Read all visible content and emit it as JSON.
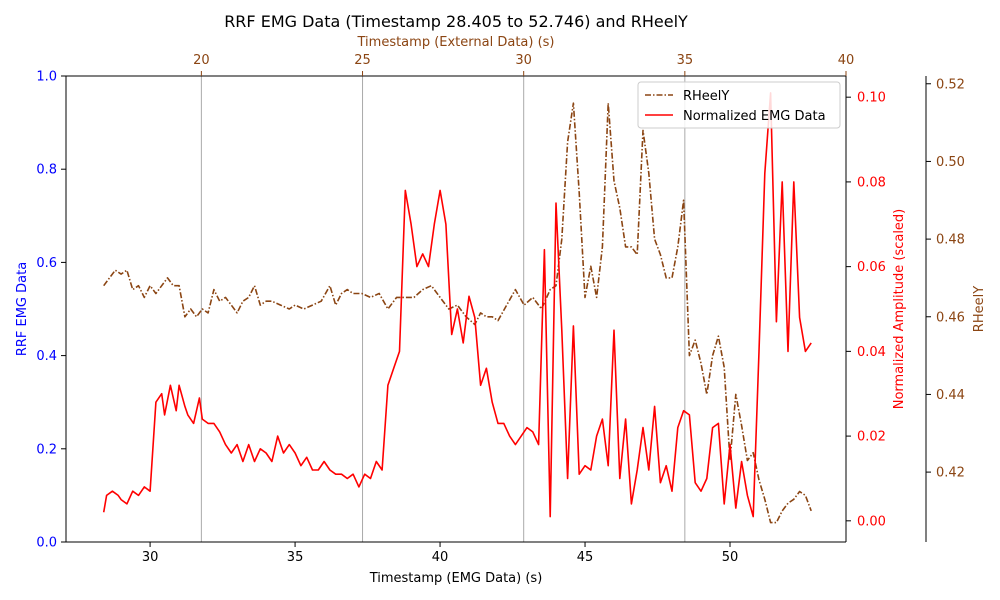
{
  "chart_data": {
    "type": "line",
    "title": "RRF EMG Data (Timestamp 28.405 to 52.746) and RHeelY",
    "xlabel": "Timestamp (EMG Data) (s)",
    "xlabel_top": "Timestamp (External Data) (s)",
    "ylabel_left": "RRF EMG Data",
    "ylabel_right": "Normalized Amplitude (scaled)",
    "ylabel_far_right": "RHeelY",
    "x_range": [
      27.1,
      54.0
    ],
    "x_ticks": [
      {
        "value": 30,
        "label": "30"
      },
      {
        "value": 35,
        "label": "35"
      },
      {
        "value": 40,
        "label": "40"
      },
      {
        "value": 45,
        "label": "45"
      },
      {
        "value": 50,
        "label": "50"
      }
    ],
    "x_top_range": [
      15.8,
      40.0
    ],
    "x_top_ticks": [
      {
        "value": 20,
        "label": "20"
      },
      {
        "value": 25,
        "label": "25"
      },
      {
        "value": 30,
        "label": "30"
      },
      {
        "value": 35,
        "label": "35"
      },
      {
        "value": 40,
        "label": "40"
      }
    ],
    "y_left_range": [
      0,
      1
    ],
    "y_left_ticks": [
      {
        "value": 0.0,
        "label": "0.0"
      },
      {
        "value": 0.2,
        "label": "0.2"
      },
      {
        "value": 0.4,
        "label": "0.4"
      },
      {
        "value": 0.6,
        "label": "0.6"
      },
      {
        "value": 0.8,
        "label": "0.8"
      },
      {
        "value": 1.0,
        "label": "1.0"
      }
    ],
    "y_right_range": [
      -0.005,
      0.105
    ],
    "y_right_ticks": [
      {
        "value": 0.0,
        "label": "0.00"
      },
      {
        "value": 0.02,
        "label": "0.02"
      },
      {
        "value": 0.04,
        "label": "0.04"
      },
      {
        "value": 0.06,
        "label": "0.06"
      },
      {
        "value": 0.08,
        "label": "0.08"
      },
      {
        "value": 0.1,
        "label": "0.10"
      }
    ],
    "y_far_right_range": [
      0.402,
      0.522
    ],
    "y_far_right_ticks": [
      {
        "value": 0.42,
        "label": "0.42"
      },
      {
        "value": 0.44,
        "label": "0.44"
      },
      {
        "value": 0.46,
        "label": "0.46"
      },
      {
        "value": 0.48,
        "label": "0.48"
      },
      {
        "value": 0.5,
        "label": "0.50"
      },
      {
        "value": 0.52,
        "label": "0.52"
      }
    ],
    "vlines_top_axis": [
      20,
      25,
      30,
      35
    ],
    "legend_position": "top-right",
    "colors": {
      "emg": "#ff0000",
      "heel": "#8b4513",
      "left_axis": "#0000ff",
      "right_axis": "#ff0000",
      "far_right_axis": "#8b4513",
      "vline": "#aaaaaa"
    },
    "series": [
      {
        "name": "RHeelY",
        "axis": "far_right",
        "style": "dashdot",
        "x": [
          28.4,
          28.6,
          28.8,
          29.0,
          29.2,
          29.4,
          29.6,
          29.8,
          30.0,
          30.2,
          30.4,
          30.6,
          30.8,
          31.0,
          31.2,
          31.4,
          31.6,
          31.8,
          32.0,
          32.2,
          32.4,
          32.6,
          32.8,
          33.0,
          33.2,
          33.4,
          33.6,
          33.8,
          34.0,
          34.2,
          34.5,
          34.8,
          35.0,
          35.3,
          35.6,
          35.9,
          36.2,
          36.4,
          36.6,
          36.8,
          37.0,
          37.3,
          37.6,
          37.9,
          38.2,
          38.5,
          38.8,
          39.1,
          39.4,
          39.7,
          40.0,
          40.3,
          40.6,
          40.9,
          41.2,
          41.4,
          41.6,
          41.8,
          42.0,
          42.3,
          42.6,
          42.9,
          43.2,
          43.5,
          43.8,
          44.0,
          44.2,
          44.4,
          44.6,
          44.8,
          45.0,
          45.2,
          45.4,
          45.6,
          45.8,
          46.0,
          46.2,
          46.4,
          46.6,
          46.8,
          47.0,
          47.2,
          47.4,
          47.6,
          47.8,
          48.0,
          48.2,
          48.4,
          48.6,
          48.8,
          49.0,
          49.2,
          49.4,
          49.6,
          49.8,
          50.0,
          50.2,
          50.4,
          50.6,
          50.8,
          51.0,
          51.2,
          51.4,
          51.6,
          51.8,
          52.0,
          52.2,
          52.4,
          52.6,
          52.8
        ],
        "values": [
          0.468,
          0.47,
          0.472,
          0.471,
          0.472,
          0.467,
          0.468,
          0.465,
          0.468,
          0.466,
          0.468,
          0.47,
          0.468,
          0.468,
          0.46,
          0.462,
          0.46,
          0.462,
          0.461,
          0.467,
          0.464,
          0.465,
          0.463,
          0.461,
          0.464,
          0.465,
          0.468,
          0.463,
          0.464,
          0.464,
          0.463,
          0.462,
          0.463,
          0.462,
          0.463,
          0.464,
          0.468,
          0.463,
          0.466,
          0.467,
          0.466,
          0.466,
          0.465,
          0.466,
          0.462,
          0.465,
          0.465,
          0.465,
          0.467,
          0.468,
          0.465,
          0.462,
          0.463,
          0.46,
          0.458,
          0.461,
          0.46,
          0.46,
          0.459,
          0.463,
          0.467,
          0.463,
          0.465,
          0.462,
          0.467,
          0.468,
          0.48,
          0.505,
          0.515,
          0.492,
          0.465,
          0.473,
          0.465,
          0.478,
          0.515,
          0.495,
          0.488,
          0.478,
          0.478,
          0.476,
          0.508,
          0.497,
          0.48,
          0.476,
          0.47,
          0.47,
          0.478,
          0.49,
          0.45,
          0.454,
          0.448,
          0.44,
          0.45,
          0.455,
          0.447,
          0.423,
          0.44,
          0.432,
          0.423,
          0.425,
          0.418,
          0.413,
          0.407,
          0.407,
          0.41,
          0.412,
          0.413,
          0.415,
          0.414,
          0.41
        ]
      },
      {
        "name": "Normalized EMG Data",
        "axis": "right",
        "style": "solid",
        "x": [
          28.4,
          28.5,
          28.7,
          28.9,
          29.0,
          29.2,
          29.4,
          29.6,
          29.8,
          30.0,
          30.2,
          30.4,
          30.5,
          30.7,
          30.9,
          31.0,
          31.2,
          31.3,
          31.5,
          31.7,
          31.8,
          32.0,
          32.2,
          32.4,
          32.6,
          32.8,
          33.0,
          33.2,
          33.4,
          33.6,
          33.8,
          34.0,
          34.2,
          34.4,
          34.6,
          34.8,
          35.0,
          35.2,
          35.4,
          35.6,
          35.8,
          36.0,
          36.2,
          36.4,
          36.6,
          36.8,
          37.0,
          37.2,
          37.4,
          37.6,
          37.8,
          38.0,
          38.2,
          38.4,
          38.6,
          38.8,
          39.0,
          39.2,
          39.4,
          39.6,
          39.8,
          40.0,
          40.2,
          40.4,
          40.6,
          40.8,
          41.0,
          41.2,
          41.4,
          41.6,
          41.8,
          42.0,
          42.2,
          42.4,
          42.6,
          42.8,
          43.0,
          43.2,
          43.4,
          43.6,
          43.8,
          44.0,
          44.2,
          44.4,
          44.6,
          44.8,
          45.0,
          45.2,
          45.4,
          45.6,
          45.8,
          46.0,
          46.2,
          46.4,
          46.6,
          46.8,
          47.0,
          47.2,
          47.4,
          47.6,
          47.8,
          48.0,
          48.2,
          48.4,
          48.6,
          48.8,
          49.0,
          49.2,
          49.4,
          49.6,
          49.8,
          50.0,
          50.2,
          50.4,
          50.6,
          50.8,
          51.0,
          51.2,
          51.4,
          51.6,
          51.8,
          52.0,
          52.2,
          52.4,
          52.6,
          52.8
        ],
        "values": [
          0.002,
          0.006,
          0.007,
          0.006,
          0.005,
          0.004,
          0.007,
          0.006,
          0.008,
          0.007,
          0.028,
          0.03,
          0.025,
          0.032,
          0.026,
          0.032,
          0.027,
          0.025,
          0.023,
          0.029,
          0.024,
          0.023,
          0.023,
          0.021,
          0.018,
          0.016,
          0.018,
          0.014,
          0.018,
          0.014,
          0.017,
          0.016,
          0.014,
          0.02,
          0.016,
          0.018,
          0.016,
          0.013,
          0.015,
          0.012,
          0.012,
          0.014,
          0.012,
          0.011,
          0.011,
          0.01,
          0.011,
          0.008,
          0.011,
          0.01,
          0.014,
          0.012,
          0.032,
          0.036,
          0.04,
          0.078,
          0.07,
          0.06,
          0.063,
          0.06,
          0.07,
          0.078,
          0.07,
          0.044,
          0.05,
          0.042,
          0.053,
          0.048,
          0.032,
          0.036,
          0.028,
          0.023,
          0.023,
          0.02,
          0.018,
          0.02,
          0.022,
          0.021,
          0.018,
          0.064,
          0.001,
          0.075,
          0.045,
          0.01,
          0.046,
          0.011,
          0.013,
          0.012,
          0.02,
          0.024,
          0.013,
          0.045,
          0.01,
          0.024,
          0.004,
          0.012,
          0.022,
          0.012,
          0.027,
          0.009,
          0.013,
          0.007,
          0.022,
          0.026,
          0.025,
          0.009,
          0.007,
          0.01,
          0.022,
          0.023,
          0.004,
          0.018,
          0.003,
          0.014,
          0.006,
          0.001,
          0.04,
          0.082,
          0.101,
          0.047,
          0.08,
          0.04,
          0.08,
          0.048,
          0.04,
          0.042
        ]
      }
    ]
  }
}
